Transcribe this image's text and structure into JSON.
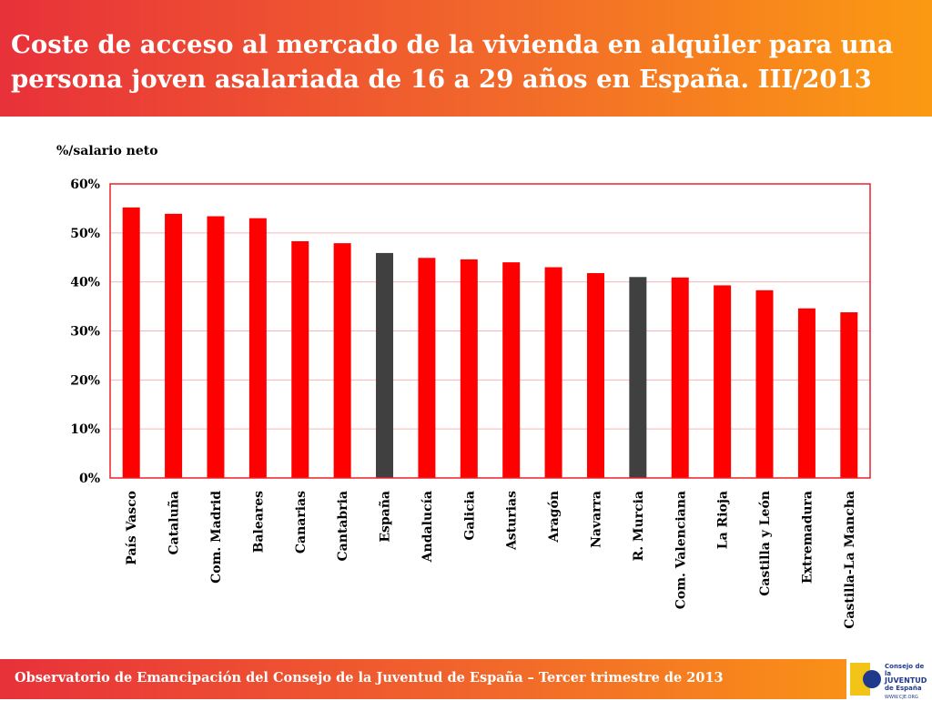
{
  "header": {
    "title": "Coste de acceso al mercado de la vivienda en alquiler para una persona joven asalariada de 16 a 29 años en España. III/2013"
  },
  "footer": {
    "text": "Observatorio de Emancipación del Consejo de la Juventud de España – Tercer trimestre de 2013"
  },
  "logo": {
    "line1": "Consejo de la",
    "line2": "JUVENTUD",
    "line3": "de España",
    "url": "WWW.CJE.ORG"
  },
  "colors": {
    "bar_default": "#ff0000",
    "bar_highlight": "#404040",
    "frame": "#e8202a",
    "grid": "#f4b6b8"
  },
  "chart_data": {
    "type": "bar",
    "title": "Coste de acceso al mercado de la vivienda en alquiler para una persona joven asalariada de 16 a 29 años en España. III/2013",
    "ylabel": "%/salario neto",
    "xlabel": "",
    "ylim": [
      0,
      60
    ],
    "yticks": [
      0,
      10,
      20,
      30,
      40,
      50,
      60
    ],
    "ytick_labels": [
      "0%",
      "10%",
      "20%",
      "30%",
      "40%",
      "50%",
      "60%"
    ],
    "grid": true,
    "categories": [
      "País Vasco",
      "Cataluña",
      "Com. Madrid",
      "Baleares",
      "Canarias",
      "Cantabria",
      "España",
      "Andalucía",
      "Galicia",
      "Asturias",
      "Aragón",
      "Navarra",
      "R. Murcia",
      "Com. Valenciana",
      "La Rioja",
      "Castilla y León",
      "Extremadura",
      "Castilla-La Mancha"
    ],
    "values": [
      55.2,
      53.9,
      53.4,
      53.0,
      48.3,
      47.9,
      45.9,
      44.9,
      44.6,
      44.0,
      43.0,
      41.8,
      41.0,
      40.9,
      39.3,
      38.3,
      34.6,
      33.8
    ],
    "highlighted": [
      "España",
      "R. Murcia"
    ]
  }
}
